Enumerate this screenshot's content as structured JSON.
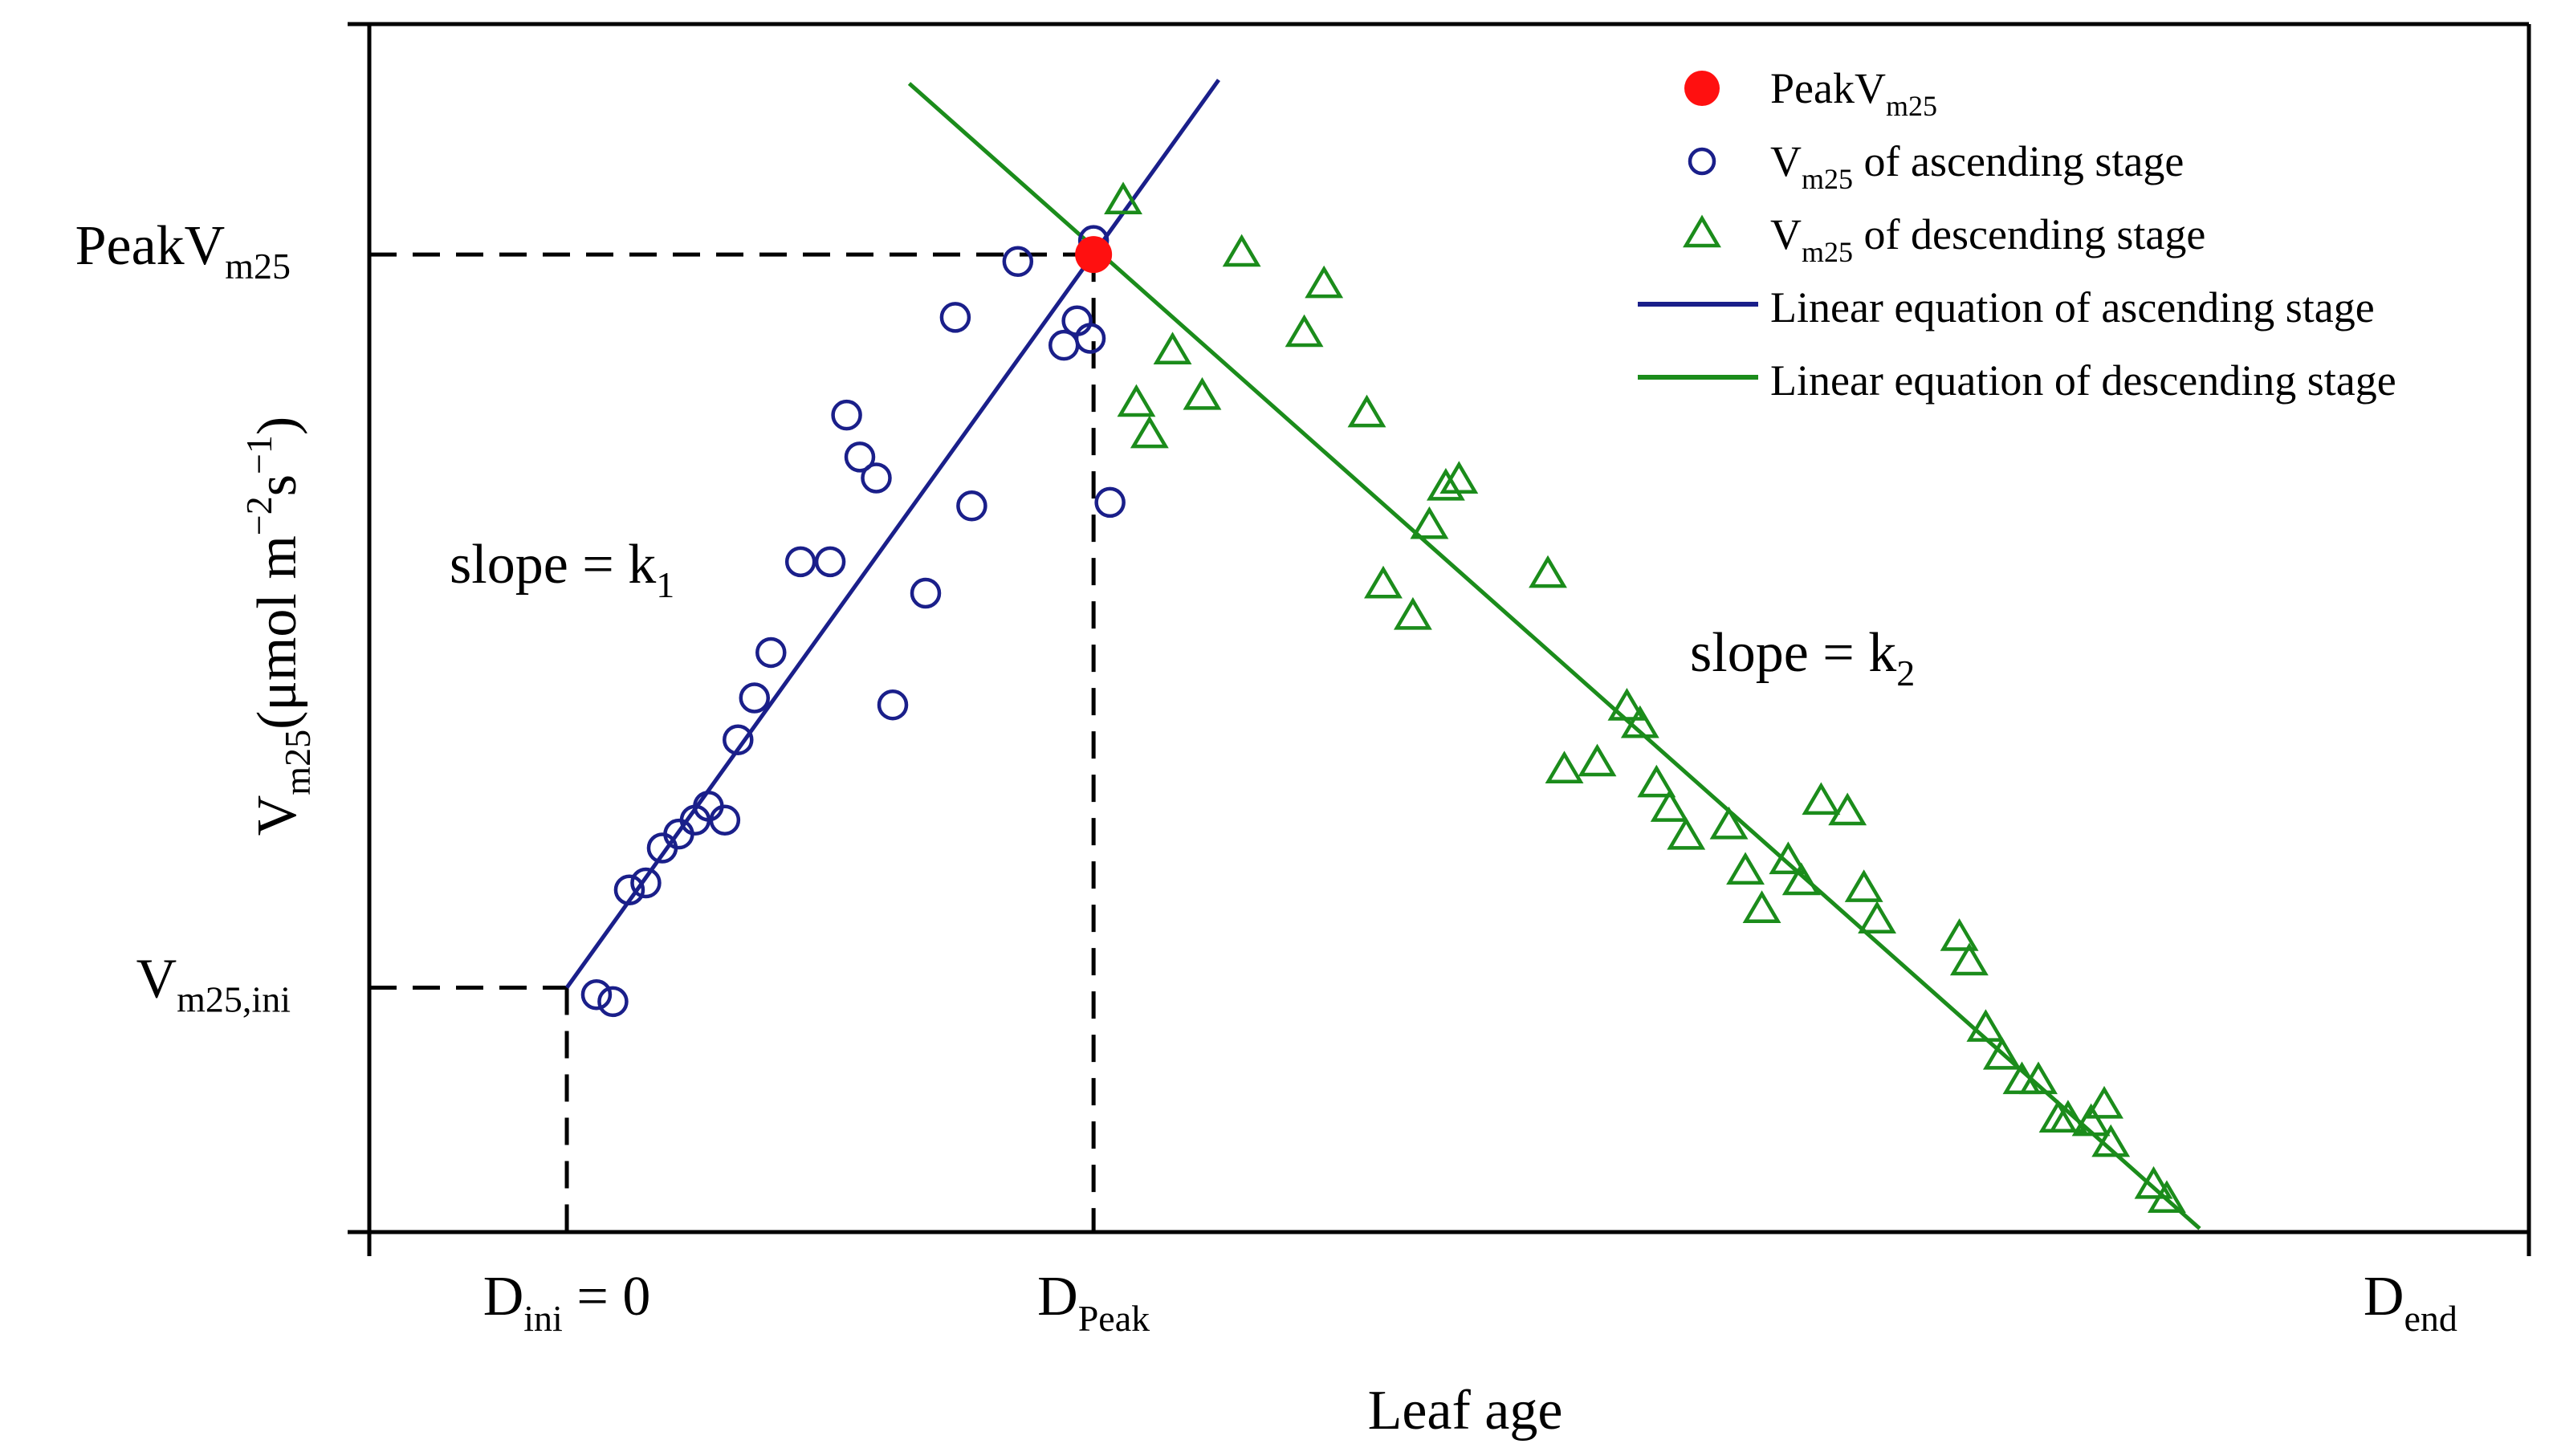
{
  "chart_data": {
    "type": "scatter",
    "xlabel": "Leaf age",
    "ylabel": {
      "base": "V",
      "sub": "m25",
      "unit_pre": "(μmol m",
      "unit_exp1": "−2",
      "unit_mid": "s",
      "unit_exp2": "−1",
      "unit_post": ")"
    },
    "x_tick_labels": [
      {
        "base": "D",
        "sub": "ini",
        "suffix": " = 0",
        "x": 0
      },
      {
        "base": "D",
        "sub": "Peak",
        "suffix": "",
        "x": 16
      },
      {
        "base": "D",
        "sub": "end",
        "suffix": "",
        "x": 56
      }
    ],
    "y_tick_labels": [
      {
        "base": "V",
        "sub": "m25,ini",
        "y": 7
      },
      {
        "base": "PeakV",
        "sub": "m25",
        "y": 28
      }
    ],
    "xlim": [
      -6,
      59.6
    ],
    "ylim": [
      0,
      34.6
    ],
    "grid": false,
    "legend_position": "top-right",
    "colors": {
      "ascending": "#1a1f8a",
      "descending": "#1b8c1b",
      "peak": "#ff1010"
    },
    "annotations": [
      {
        "prefix": "slope = k",
        "sub": "1"
      },
      {
        "prefix": "slope = k",
        "sub": "2"
      }
    ],
    "legend": [
      {
        "kind": "peak",
        "text": "PeakV",
        "sub": "m25",
        "suffix": ""
      },
      {
        "kind": "circle",
        "text": "V",
        "sub": "m25",
        "suffix": " of ascending stage"
      },
      {
        "kind": "triangle",
        "text": "V",
        "sub": "m25",
        "suffix": " of descending stage"
      },
      {
        "kind": "line-asc",
        "text": "Linear equation of ascending stage",
        "sub": "",
        "suffix": ""
      },
      {
        "kind": "line-desc",
        "text": "Linear equation of descending stage",
        "sub": "",
        "suffix": ""
      }
    ],
    "peak": {
      "x": 16,
      "y": 28
    },
    "fit_lines": [
      {
        "name": "Linear equation of ascending stage",
        "x": [
          0,
          19.8
        ],
        "y": [
          7,
          33
        ]
      },
      {
        "name": "Linear equation of descending stage",
        "x": [
          10.4,
          49.6
        ],
        "y": [
          32.9,
          0.1
        ]
      }
    ],
    "series": [
      {
        "name": "V",
        "marker": "circle",
        "x": [
          0.9,
          1.4,
          1.9,
          2.4,
          2.9,
          3.4,
          3.9,
          4.3,
          4.8,
          5.2,
          5.7,
          6.2,
          7.1,
          8.0,
          8.5,
          8.9,
          9.4,
          9.9,
          10.9,
          11.8,
          12.3,
          13.7,
          16.0,
          15.5,
          15.1,
          15.9,
          16.5
        ],
        "y": [
          6.8,
          6.6,
          9.8,
          10.0,
          11.0,
          11.4,
          11.8,
          12.2,
          11.8,
          14.1,
          15.3,
          16.6,
          19.2,
          19.2,
          23.4,
          22.2,
          21.6,
          15.1,
          18.3,
          26.2,
          20.8,
          27.8,
          28.4,
          26.1,
          25.4,
          25.6,
          20.9
        ]
      },
      {
        "name": "V",
        "marker": "triangle",
        "x": [
          16.9,
          17.3,
          17.7,
          18.4,
          19.3,
          20.5,
          22.4,
          23.0,
          24.3,
          24.8,
          25.7,
          26.2,
          26.7,
          27.1,
          29.8,
          30.3,
          31.3,
          32.2,
          32.6,
          33.1,
          33.5,
          34.0,
          35.3,
          35.8,
          36.3,
          37.1,
          37.5,
          38.1,
          38.9,
          39.4,
          39.8,
          42.3,
          42.6,
          43.1,
          43.6,
          44.2,
          44.7,
          45.3,
          45.6,
          46.3,
          46.7,
          46.9,
          48.2,
          48.6
        ],
        "y": [
          29.5,
          23.7,
          22.8,
          25.2,
          23.9,
          28.0,
          25.7,
          27.1,
          23.4,
          18.5,
          17.6,
          20.2,
          21.3,
          21.5,
          18.8,
          13.2,
          13.4,
          15.0,
          14.5,
          12.8,
          12.1,
          11.3,
          11.6,
          10.3,
          9.2,
          10.6,
          10.0,
          12.3,
          12.0,
          9.8,
          8.9,
          8.4,
          7.7,
          5.8,
          5.0,
          4.3,
          4.3,
          3.2,
          3.2,
          3.1,
          3.6,
          2.5,
          1.3,
          0.9
        ]
      }
    ]
  }
}
